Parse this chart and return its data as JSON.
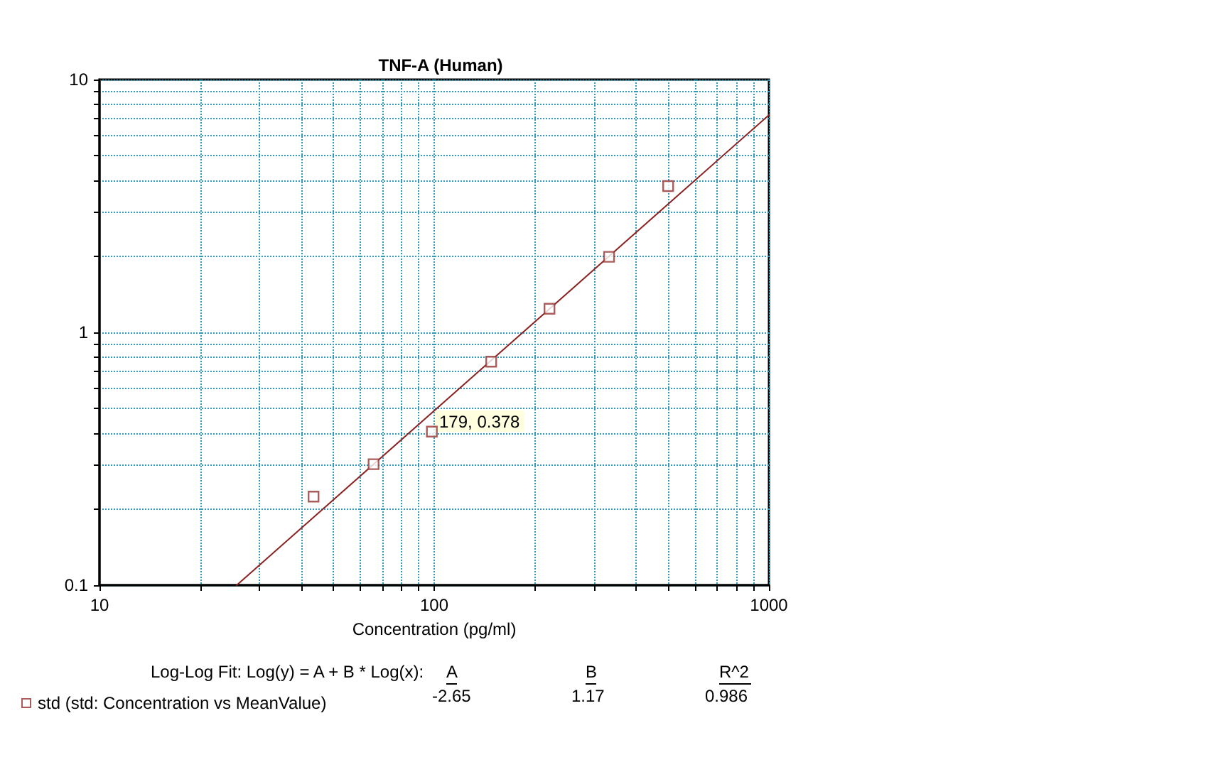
{
  "chart_data": {
    "type": "scatter",
    "title": "TNF-A (Human)",
    "xlabel": "Concentration (pg/ml)",
    "log": "xy",
    "grid": true,
    "legend": "bottom left",
    "line_style": "solid",
    "xlim": [
      10,
      1000
    ],
    "xticks": [
      10,
      {
        "value": 20,
        "label": null
      },
      {
        "value": 30,
        "label": null
      },
      {
        "value": 40,
        "label": null
      },
      {
        "value": 50,
        "label": null
      },
      {
        "value": 60,
        "label": null
      },
      {
        "value": 70,
        "label": null
      },
      {
        "value": 80,
        "label": null
      },
      {
        "value": 90,
        "label": null
      },
      100,
      {
        "value": 200,
        "label": null
      },
      {
        "value": 300,
        "label": null
      },
      {
        "value": 400,
        "label": null
      },
      {
        "value": 500,
        "label": null
      },
      {
        "value": 600,
        "label": null
      },
      {
        "value": 700,
        "label": null
      },
      {
        "value": 800,
        "label": null
      },
      {
        "value": 900,
        "label": null
      },
      1000
    ],
    "ylim": [
      0.1,
      10
    ],
    "yticks": [
      0.1,
      {
        "value": 0.2,
        "label": null
      },
      {
        "value": 0.3,
        "label": null
      },
      {
        "value": 0.4,
        "label": null
      },
      {
        "value": 0.5,
        "label": null
      },
      {
        "value": 0.6,
        "label": null
      },
      {
        "value": 0.7,
        "label": null
      },
      {
        "value": 0.8,
        "label": null
      },
      {
        "value": 0.9,
        "label": null
      },
      1,
      {
        "value": 2,
        "label": null
      },
      {
        "value": 3,
        "label": null
      },
      {
        "value": 4,
        "label": null
      },
      {
        "value": 5,
        "label": null
      },
      {
        "value": 6,
        "label": null
      },
      {
        "value": 7,
        "label": null
      },
      {
        "value": 8,
        "label": null
      },
      {
        "value": 9,
        "label": null
      },
      10
    ],
    "series": [
      {
        "name": "std (std: Concentration vs MeanValue)",
        "marker": "square",
        "color": "#993333",
        "x": [
          43.6,
          65.9,
          98.4,
          148,
          221,
          333,
          500
        ],
        "values": [
          0.224,
          0.301,
          0.405,
          0.766,
          1.24,
          1.99,
          3.79
        ]
      },
      {
        "type": "line",
        "marker": "none",
        "color": "#8b2323",
        "x": [
          25.7,
          1000
        ],
        "values": [
          0.1,
          7.24
        ]
      }
    ],
    "annotations": [
      "Log-Log Fit: Log(y) = A + B * Log(x):",
      "A",
      "B",
      "R^2",
      "-2.65",
      "1.17",
      "0.986",
      "179, 0.378"
    ]
  }
}
